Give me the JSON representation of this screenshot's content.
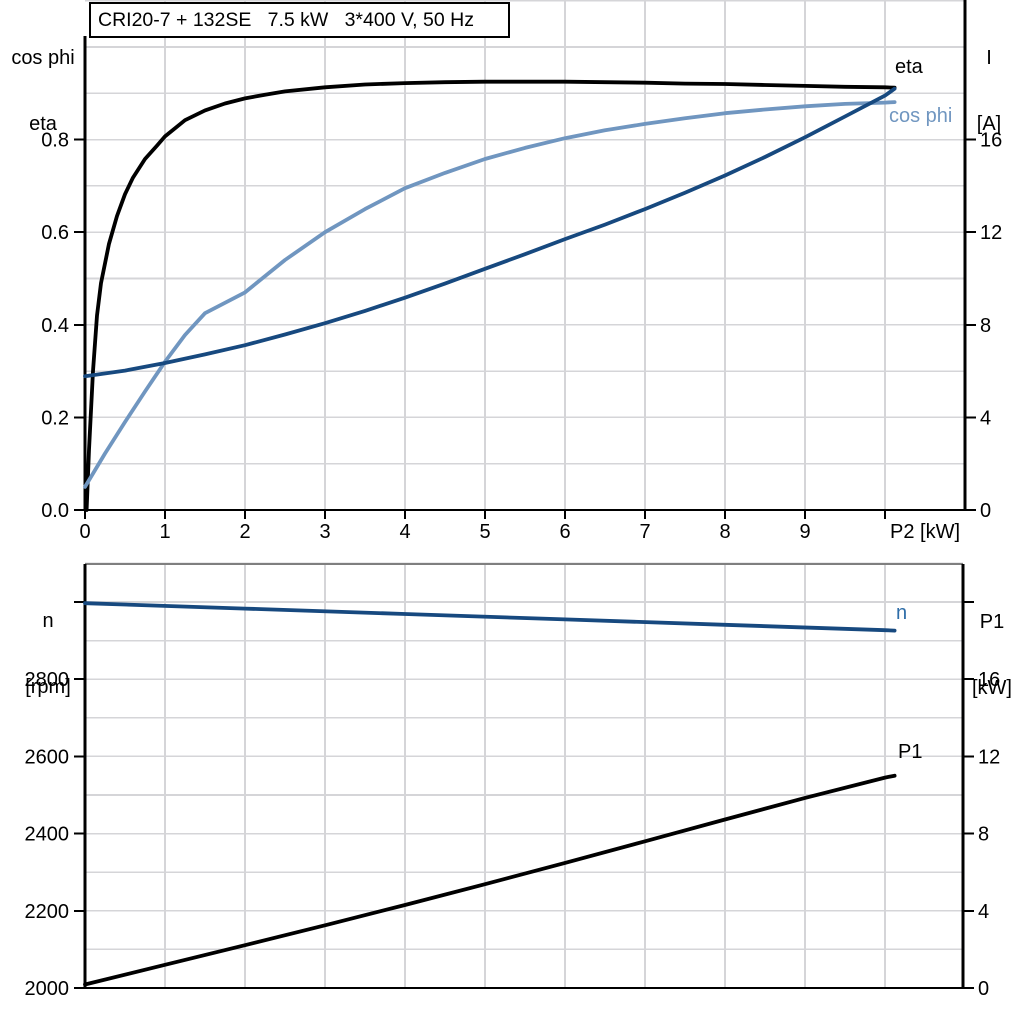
{
  "title_box": {
    "text": "CRI20-7 + 132SE   7.5 kW   3*400 V, 50 Hz"
  },
  "headers": {
    "top_left_line1": "cos phi",
    "top_left_line2": "eta",
    "top_right_line1": "I",
    "top_right_line2": "[A]",
    "bottom_left_line1": "n",
    "bottom_left_line2": "[rpm]",
    "bottom_right_line1": "P1",
    "bottom_right_line2": "[kW]"
  },
  "curve_labels": {
    "eta": "eta",
    "cos_phi": "cos phi",
    "n": "n",
    "p1": "P1"
  },
  "colors": {
    "black": "#000000",
    "dark_blue": "#17497f",
    "light_blue": "#7096c0",
    "label_blue": "#2e6da8",
    "grid": "#d5d5d8",
    "frame_gray": "#7f7f7f"
  },
  "chart_data": [
    {
      "type": "line",
      "position": "top",
      "title": "CRI20-7 + 132SE   7.5 kW   3*400 V, 50 Hz",
      "x_axis": {
        "label": "P2 [kW]",
        "range": [
          0,
          11
        ],
        "grid_step": 1,
        "ticks": [
          0,
          1,
          2,
          3,
          4,
          5,
          6,
          7,
          8,
          9,
          10
        ],
        "tick_labels": [
          "0",
          "1",
          "2",
          "3",
          "4",
          "5",
          "6",
          "7",
          "8",
          "9",
          "P2 [kW]"
        ]
      },
      "left_axis": {
        "header": "cos phi / eta",
        "range": [
          0,
          1.1
        ],
        "grid_step": 0.1,
        "ticks": [
          0,
          0.2,
          0.4,
          0.6,
          0.8
        ],
        "tick_labels": [
          "0.0",
          "0.2",
          "0.4",
          "0.6",
          "0.8"
        ]
      },
      "right_axis": {
        "header": "I [A]",
        "range": [
          0,
          22
        ],
        "grid_step": 2,
        "ticks": [
          0,
          4,
          8,
          12,
          16
        ],
        "tick_labels": [
          "0",
          "4",
          "8",
          "12",
          "16"
        ]
      },
      "series": [
        {
          "name": "eta",
          "axis": "left",
          "color_key": "black",
          "points": [
            [
              0.02,
              0.0
            ],
            [
              0.05,
              0.13
            ],
            [
              0.1,
              0.3
            ],
            [
              0.15,
              0.42
            ],
            [
              0.2,
              0.49
            ],
            [
              0.3,
              0.575
            ],
            [
              0.4,
              0.635
            ],
            [
              0.5,
              0.682
            ],
            [
              0.6,
              0.718
            ],
            [
              0.75,
              0.758
            ],
            [
              0.9,
              0.787
            ],
            [
              1.0,
              0.807
            ],
            [
              1.25,
              0.842
            ],
            [
              1.5,
              0.863
            ],
            [
              1.75,
              0.878
            ],
            [
              2.0,
              0.889
            ],
            [
              2.25,
              0.897
            ],
            [
              2.5,
              0.904
            ],
            [
              3.0,
              0.913
            ],
            [
              3.5,
              0.919
            ],
            [
              4.0,
              0.922
            ],
            [
              4.5,
              0.924
            ],
            [
              5.0,
              0.925
            ],
            [
              6.0,
              0.925
            ],
            [
              6.5,
              0.924
            ],
            [
              7.0,
              0.923
            ],
            [
              7.5,
              0.921
            ],
            [
              8.0,
              0.92
            ],
            [
              8.5,
              0.918
            ],
            [
              9.0,
              0.916
            ],
            [
              9.5,
              0.914
            ],
            [
              10.0,
              0.913
            ],
            [
              10.12,
              0.912
            ]
          ]
        },
        {
          "name": "cos phi",
          "axis": "left",
          "color_key": "light_blue",
          "points": [
            [
              0.0,
              0.05
            ],
            [
              0.25,
              0.122
            ],
            [
              0.5,
              0.19
            ],
            [
              0.75,
              0.256
            ],
            [
              1.0,
              0.32
            ],
            [
              1.25,
              0.378
            ],
            [
              1.5,
              0.425
            ],
            [
              2.0,
              0.47
            ],
            [
              2.5,
              0.54
            ],
            [
              3.0,
              0.6
            ],
            [
              3.5,
              0.65
            ],
            [
              4.0,
              0.695
            ],
            [
              4.5,
              0.728
            ],
            [
              5.0,
              0.758
            ],
            [
              5.5,
              0.782
            ],
            [
              6.0,
              0.803
            ],
            [
              6.5,
              0.82
            ],
            [
              7.0,
              0.834
            ],
            [
              7.5,
              0.846
            ],
            [
              8.0,
              0.857
            ],
            [
              8.5,
              0.865
            ],
            [
              9.0,
              0.872
            ],
            [
              9.5,
              0.877
            ],
            [
              10.0,
              0.88
            ],
            [
              10.12,
              0.881
            ]
          ]
        },
        {
          "name": "I",
          "axis": "right",
          "color_key": "dark_blue",
          "points": [
            [
              0,
              5.78
            ],
            [
              0.5,
              6.02
            ],
            [
              1,
              6.35
            ],
            [
              1.5,
              6.72
            ],
            [
              2,
              7.12
            ],
            [
              2.5,
              7.58
            ],
            [
              3,
              8.07
            ],
            [
              3.5,
              8.6
            ],
            [
              4,
              9.17
            ],
            [
              4.5,
              9.78
            ],
            [
              5,
              10.42
            ],
            [
              5.5,
              11.05
            ],
            [
              6,
              11.7
            ],
            [
              6.5,
              12.33
            ],
            [
              7,
              13.0
            ],
            [
              7.5,
              13.7
            ],
            [
              8,
              14.45
            ],
            [
              8.5,
              15.25
            ],
            [
              9,
              16.1
            ],
            [
              9.5,
              17.0
            ],
            [
              10,
              17.9
            ],
            [
              10.12,
              18.2
            ]
          ]
        }
      ]
    },
    {
      "type": "line",
      "position": "bottom",
      "x_axis": {
        "label": "",
        "range": [
          0,
          11
        ],
        "grid_step": 1,
        "ticks": [],
        "tick_labels": []
      },
      "left_axis": {
        "header": "n [rpm]",
        "range": [
          2000,
          3100
        ],
        "grid_step": 100,
        "ticks": [
          2000,
          2200,
          2400,
          2600,
          2800,
          3000
        ],
        "tick_labels": [
          "2000",
          "2200",
          "2400",
          "2600",
          "2800",
          ""
        ]
      },
      "right_axis": {
        "header": "P1 [kW]",
        "range": [
          0,
          22
        ],
        "grid_step": 2,
        "ticks": [
          0,
          4,
          8,
          12,
          16,
          20
        ],
        "tick_labels": [
          "0",
          "4",
          "8",
          "12",
          "16",
          ""
        ]
      },
      "series": [
        {
          "name": "n",
          "axis": "left",
          "color_key": "dark_blue",
          "points": [
            [
              0,
              2997
            ],
            [
              2,
              2983
            ],
            [
              4,
              2969
            ],
            [
              6,
              2955
            ],
            [
              8,
              2941
            ],
            [
              10,
              2927
            ],
            [
              10.12,
              2926
            ]
          ]
        },
        {
          "name": "P1",
          "axis": "right",
          "color_key": "black",
          "points": [
            [
              0,
              0.18
            ],
            [
              1,
              1.2
            ],
            [
              2,
              2.22
            ],
            [
              3,
              3.25
            ],
            [
              4,
              4.3
            ],
            [
              5,
              5.38
            ],
            [
              6,
              6.48
            ],
            [
              7,
              7.6
            ],
            [
              8,
              8.73
            ],
            [
              9,
              9.85
            ],
            [
              10,
              10.9
            ],
            [
              10.12,
              11.0
            ]
          ]
        }
      ]
    }
  ]
}
